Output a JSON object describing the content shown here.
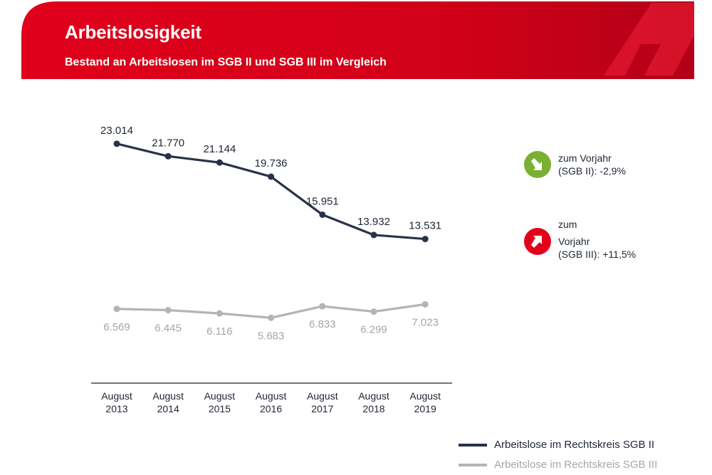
{
  "header": {
    "title": "Arbeitslosigkeit",
    "subtitle": "Bestand an Arbeitslosen im SGB II und SGB III im Vergleich"
  },
  "colors": {
    "brand_red": "#d6001c",
    "sgb2_line": "#283249",
    "sgb3_line": "#b4b4b4",
    "down_badge": "#7ab030",
    "up_badge": "#e2001a"
  },
  "changes": {
    "sgb2": {
      "line1": "zum Vorjahr",
      "line2": "(SGB II):",
      "value": "-2,9%",
      "icon": "arrow-down-right-icon"
    },
    "sgb3": {
      "line1": "zum",
      "line2": "Vorjahr",
      "line3": "(SGB III):",
      "value": "+11,5%",
      "icon": "arrow-up-right-icon"
    }
  },
  "chart_data": {
    "type": "line",
    "categories": [
      [
        "August",
        "2013"
      ],
      [
        "August",
        "2014"
      ],
      [
        "August",
        "2015"
      ],
      [
        "August",
        "2016"
      ],
      [
        "August",
        "2017"
      ],
      [
        "August",
        "2018"
      ],
      [
        "August",
        "2019"
      ]
    ],
    "series": [
      {
        "name": "Arbeitslose im Rechtskreis SGB II",
        "values": [
          23014,
          21770,
          21144,
          19736,
          15951,
          13932,
          13531
        ],
        "labels": [
          "23.014",
          "21.770",
          "21.144",
          "19.736",
          "15.951",
          "13.932",
          "13.531"
        ]
      },
      {
        "name": "Arbeitslose im Rechtskreis SGB III",
        "values": [
          6569,
          6445,
          6116,
          5683,
          6833,
          6299,
          7023
        ],
        "labels": [
          "6.569",
          "6.445",
          "6.116",
          "5.683",
          "6.833",
          "6.299",
          "7.023"
        ]
      }
    ],
    "ylim": [
      4000,
      23500
    ],
    "legend_position": "bottom-right",
    "grid": false
  }
}
